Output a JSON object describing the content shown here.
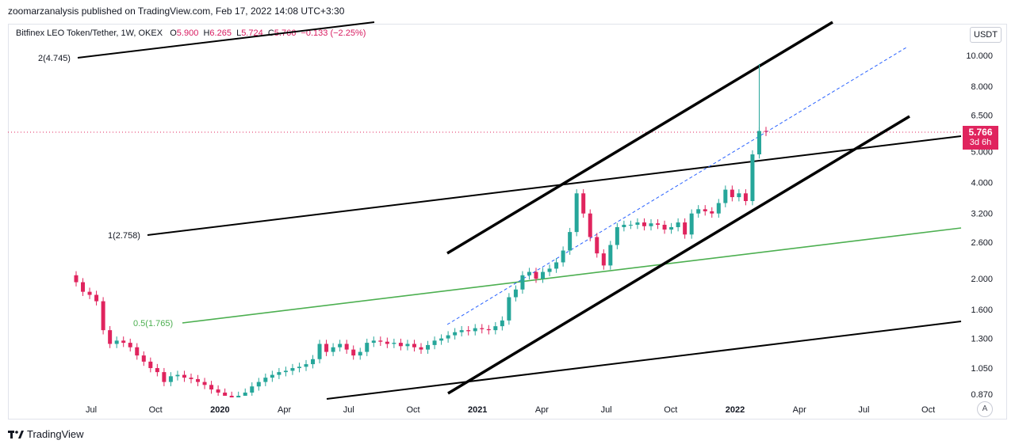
{
  "header": {
    "publisher": "zoomarzanalysis published on TradingView.com, Feb 17, 2022 14:08 UTC+3:30"
  },
  "legend": {
    "symbol": "Bitfinex LEO Token/Tether, 1W, OKEX",
    "open_label": "O",
    "open": "5.900",
    "high_label": "H",
    "high": "6.265",
    "low_label": "L",
    "low": "5.724",
    "close_label": "C",
    "close": "5.766",
    "change": "−0.133 (−2.25%)"
  },
  "price_axis": {
    "currency": "USDT",
    "last_price": "5.766",
    "countdown": "3d 6h",
    "auto_button": "A"
  },
  "footer": {
    "brand": "TradingView"
  },
  "chart_data": {
    "type": "candlestick",
    "scale": "log",
    "y_ticks": [
      "10.000",
      "8.000",
      "6.500",
      "5.000",
      "4.000",
      "3.200",
      "2.600",
      "2.000",
      "1.600",
      "1.300",
      "1.050",
      "0.870"
    ],
    "x_ticks": [
      "Jul",
      "Oct",
      "2020",
      "Apr",
      "Jul",
      "Oct",
      "2021",
      "Apr",
      "Jul",
      "Oct",
      "2022",
      "Apr",
      "Jul",
      "Oct"
    ],
    "x_ticks_bold": [
      "2020",
      "2021",
      "2022"
    ],
    "last_price": 5.766,
    "colors": {
      "up": "#26a69a",
      "down": "#e0245e",
      "fib": "#000000",
      "fib_mid": "#4caf50",
      "trend": "#2962ff"
    },
    "candle_closes": [
      1.95,
      1.82,
      1.78,
      1.7,
      1.38,
      1.25,
      1.28,
      1.26,
      1.22,
      1.15,
      1.1,
      1.05,
      1.02,
      0.95,
      0.99,
      1.0,
      0.98,
      0.97,
      0.95,
      0.93,
      0.9,
      0.88,
      0.86,
      0.85,
      0.86,
      0.88,
      0.92,
      0.95,
      0.98,
      1.0,
      1.02,
      1.03,
      1.05,
      1.06,
      1.08,
      1.12,
      1.25,
      1.18,
      1.22,
      1.25,
      1.2,
      1.15,
      1.18,
      1.26,
      1.28,
      1.27,
      1.25,
      1.26,
      1.23,
      1.25,
      1.22,
      1.2,
      1.24,
      1.28,
      1.3,
      1.33,
      1.36,
      1.38,
      1.37,
      1.4,
      1.39,
      1.38,
      1.42,
      1.48,
      1.75,
      1.85,
      2.05,
      2.1,
      2.0,
      2.1,
      2.15,
      2.25,
      2.45,
      2.8,
      3.7,
      3.2,
      2.7,
      2.4,
      2.2,
      2.55,
      2.9,
      2.95,
      2.95,
      3.0,
      2.92,
      2.98,
      2.95,
      2.85,
      2.9,
      3.0,
      2.75,
      3.2,
      3.3,
      3.25,
      3.2,
      3.45,
      3.8,
      3.6,
      3.7,
      3.5,
      4.9,
      5.8,
      5.766
    ],
    "fib_levels": [
      {
        "label": "2(4.745)",
        "ratio": 2
      },
      {
        "label": "1(2.758)",
        "ratio": 1
      },
      {
        "label": "0.5(1.765)",
        "ratio": 0.5
      }
    ]
  }
}
